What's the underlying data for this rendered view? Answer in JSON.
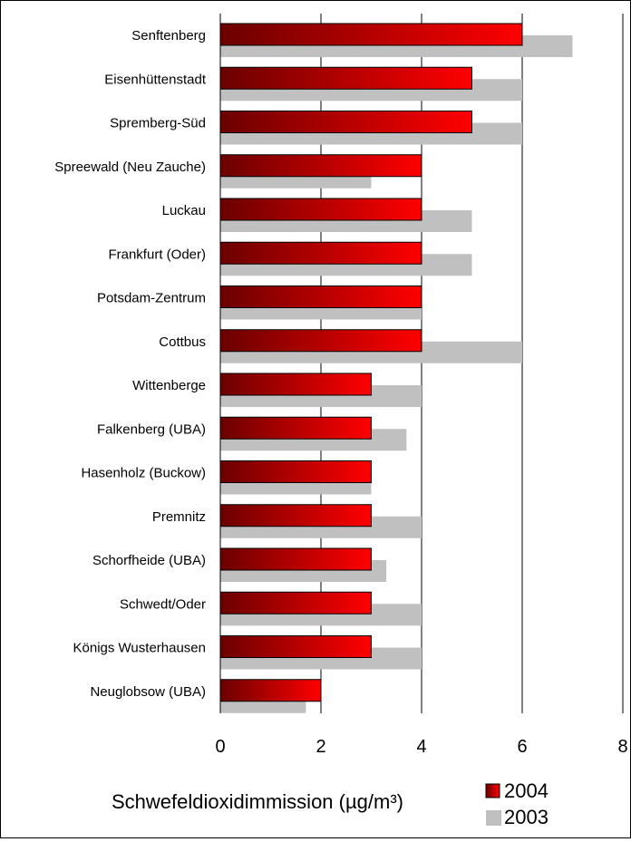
{
  "chart_data": {
    "type": "bar",
    "orientation": "horizontal",
    "categories": [
      "Senftenberg",
      "Eisenhüttenstadt",
      "Spremberg-Süd",
      "Spreewald (Neu Zauche)",
      "Luckau",
      "Frankfurt (Oder)",
      "Potsdam-Zentrum",
      "Cottbus",
      "Wittenberge",
      "Falkenberg (UBA)",
      "Hasenholz (Buckow)",
      "Premnitz",
      "Schorfheide (UBA)",
      "Schwedt/Oder",
      "Königs Wusterhausen",
      "Neuglobsow (UBA)"
    ],
    "series": [
      {
        "name": "2004",
        "values": [
          6,
          5,
          5,
          4,
          4,
          4,
          4,
          4,
          3,
          3,
          3,
          3,
          3,
          3,
          3,
          2
        ]
      },
      {
        "name": "2003",
        "values": [
          7,
          6,
          6,
          3,
          5,
          5,
          4,
          6,
          4,
          3.7,
          3,
          4,
          3.3,
          4,
          4,
          1.7
        ]
      }
    ],
    "title": "",
    "xlabel": "Schwefeldioxidimmission (µg/m³)",
    "ylabel": "",
    "xlim": [
      0,
      8
    ],
    "xticks": [
      "0",
      "2",
      "4",
      "6",
      "8"
    ],
    "grid": "vertical",
    "legend_position": "bottom-right",
    "colors": {
      "2004_dark": "#6b0000",
      "2004_light": "#ff0000",
      "2003": "#c0c0c0"
    }
  }
}
